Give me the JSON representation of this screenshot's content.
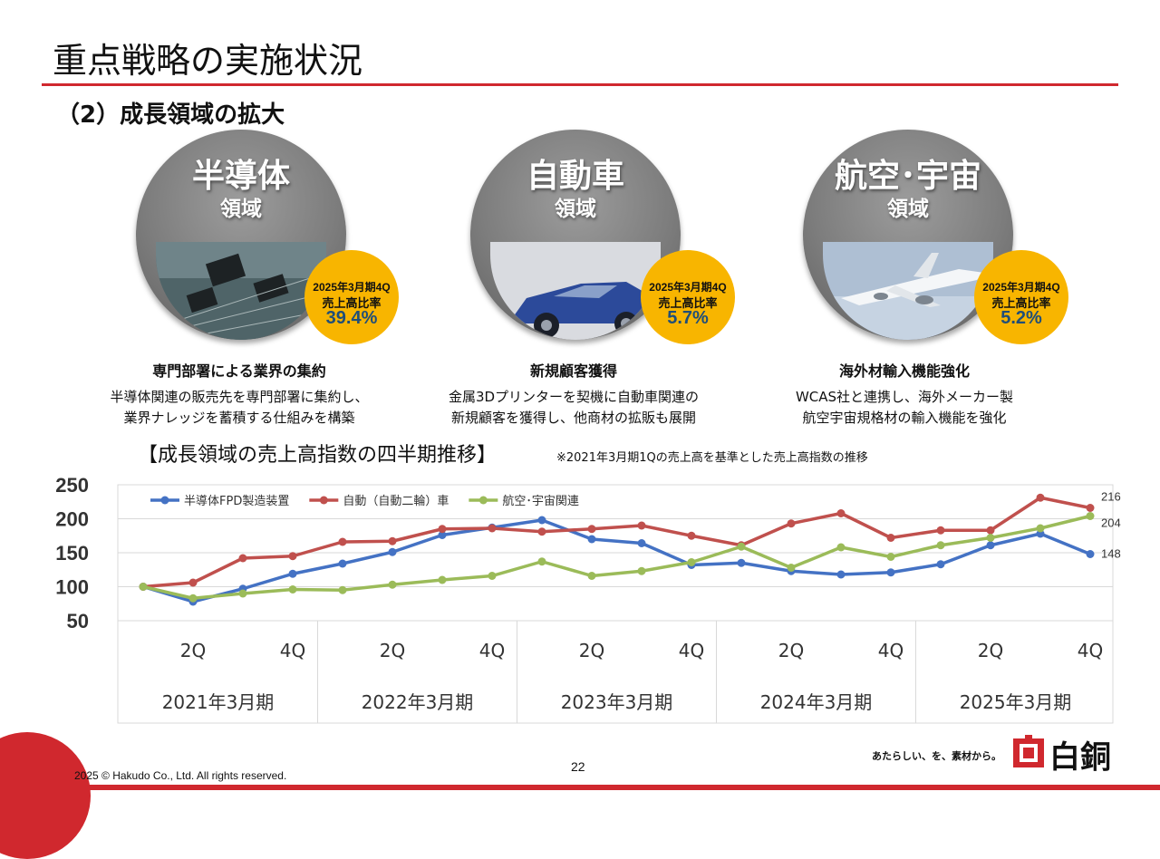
{
  "header": {
    "title": "重点戦略の実施状況",
    "subtitle": "（2）成長領域の拡大"
  },
  "domains": [
    {
      "name": "半導体",
      "sub": "領域",
      "badge_period": "2025年3月期4Q",
      "badge_label": "売上高比率",
      "badge_value": "39.4%",
      "heading": "専門部署による業界の集約",
      "desc_line1": "半導体関連の販売先を専門部署に集約し、",
      "desc_line2": "業界ナレッジを蓄積する仕組みを構築",
      "icon": "chip-board-photo"
    },
    {
      "name": "自動車",
      "sub": "領域",
      "badge_period": "2025年3月期4Q",
      "badge_label": "売上高比率",
      "badge_value": "5.7%",
      "heading": "新規顧客獲得",
      "desc_line1": "金属3Dプリンターを契機に自動車関連の",
      "desc_line2": "新規顧客を獲得し、他商材の拡販も展開",
      "icon": "car-photo"
    },
    {
      "name": "航空･宇宙",
      "sub": "領域",
      "badge_period": "2025年3月期4Q",
      "badge_label": "売上高比率",
      "badge_value": "5.2%",
      "heading": "海外材輸入機能強化",
      "desc_line1": "WCAS社と連携し、海外メーカー製",
      "desc_line2": "航空宇宙規格材の輸入機能を強化",
      "icon": "airplane-photo"
    }
  ],
  "chart_title": "【成長領域の売上高指数の四半期推移】",
  "chart_note": "※2021年3月期1Qの売上高を基準とした売上高指数の推移",
  "chart_data": {
    "type": "line",
    "x": [
      "2021年3月期 1Q",
      "2021年3月期 2Q",
      "2021年3月期 3Q",
      "2021年3月期 4Q",
      "2022年3月期 1Q",
      "2022年3月期 2Q",
      "2022年3月期 3Q",
      "2022年3月期 4Q",
      "2023年3月期 1Q",
      "2023年3月期 2Q",
      "2023年3月期 3Q",
      "2023年3月期 4Q",
      "2024年3月期 1Q",
      "2024年3月期 2Q",
      "2024年3月期 3Q",
      "2024年3月期 4Q",
      "2025年3月期 1Q",
      "2025年3月期 2Q",
      "2025年3月期 3Q",
      "2025年3月期 4Q"
    ],
    "tick_labels": [
      "",
      "2Q",
      "",
      "4Q",
      "",
      "2Q",
      "",
      "4Q",
      "",
      "2Q",
      "",
      "4Q",
      "",
      "2Q",
      "",
      "4Q",
      "",
      "2Q",
      "",
      "4Q"
    ],
    "fiscal_years": [
      "2021年3月期",
      "2022年3月期",
      "2023年3月期",
      "2024年3月期",
      "2025年3月期"
    ],
    "ylim": [
      50,
      250
    ],
    "yticks": [
      50,
      100,
      150,
      200,
      250
    ],
    "series": [
      {
        "name": "半導体FPD製造装置",
        "color": "#4472c4",
        "values": [
          100,
          78,
          97,
          119,
          134,
          151,
          176,
          187,
          198,
          170,
          164,
          132,
          135,
          123,
          118,
          121,
          133,
          161,
          178,
          148
        ],
        "end_label": "148"
      },
      {
        "name": "自動（自動二輪）車",
        "color": "#c0504d",
        "values": [
          100,
          106,
          142,
          145,
          166,
          167,
          185,
          186,
          181,
          185,
          190,
          175,
          161,
          193,
          208,
          172,
          183,
          183,
          231,
          216
        ],
        "end_label": "216"
      },
      {
        "name": "航空･宇宙関連",
        "color": "#9bbb59",
        "values": [
          100,
          83,
          90,
          96,
          95,
          103,
          110,
          116,
          137,
          116,
          123,
          136,
          159,
          128,
          158,
          144,
          161,
          172,
          186,
          204
        ],
        "end_label": "204"
      }
    ],
    "legend_position": "top-left",
    "grid": true
  },
  "footer": {
    "copyright": "2025 © Hakudo Co., Ltd. All rights reserved.",
    "page": "22",
    "tagline": "あたらしい、を、素材から。",
    "logo_text": "白銅",
    "brand_color": "#d0282e"
  }
}
